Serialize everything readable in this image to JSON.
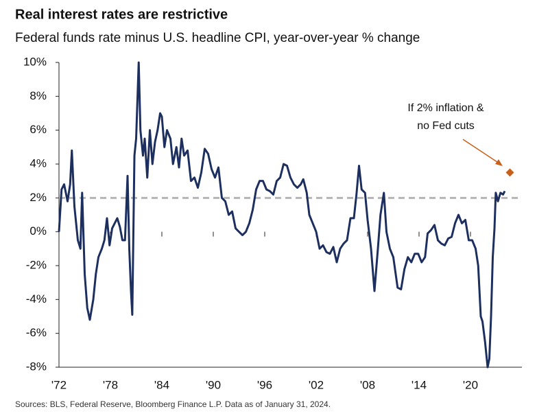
{
  "chart_data": {
    "type": "line",
    "title": "Real interest rates are restrictive",
    "subtitle": "Federal funds rate minus U.S. headline CPI, year-over-year % change",
    "source": "Sources: BLS, Federal Reserve, Bloomberg Finance L.P. Data as of January 31, 2024.",
    "annotation": [
      "If 2% inflation &",
      "no Fed cuts"
    ],
    "color": "#1d2f5f",
    "x": [
      1972.0,
      1972.3,
      1972.6,
      1973.0,
      1973.3,
      1973.5,
      1973.8,
      1974.2,
      1974.5,
      1974.7,
      1975.0,
      1975.3,
      1975.6,
      1976.0,
      1976.3,
      1976.6,
      1977.0,
      1977.3,
      1977.6,
      1977.9,
      1978.2,
      1978.5,
      1978.8,
      1979.1,
      1979.4,
      1979.7,
      1980.0,
      1980.2,
      1980.4,
      1980.55,
      1980.8,
      1981.0,
      1981.3,
      1981.5,
      1981.8,
      1982.0,
      1982.3,
      1982.6,
      1982.9,
      1983.2,
      1983.5,
      1983.8,
      1984.0,
      1984.3,
      1984.6,
      1985.0,
      1985.3,
      1985.7,
      1986.0,
      1986.3,
      1986.6,
      1987.0,
      1987.4,
      1987.8,
      1988.2,
      1988.6,
      1989.0,
      1989.4,
      1989.8,
      1990.2,
      1990.6,
      1991.0,
      1991.4,
      1991.8,
      1992.2,
      1992.6,
      1993.0,
      1993.4,
      1993.8,
      1994.2,
      1994.6,
      1995.0,
      1995.4,
      1995.8,
      1996.2,
      1996.6,
      1997.0,
      1997.4,
      1997.8,
      1998.2,
      1998.6,
      1999.0,
      1999.4,
      1999.8,
      2000.2,
      2000.5,
      2000.9,
      2001.2,
      2001.6,
      2002.0,
      2002.4,
      2002.8,
      2003.2,
      2003.6,
      2004.0,
      2004.4,
      2004.8,
      2005.2,
      2005.6,
      2006.0,
      2006.4,
      2006.7,
      2007.0,
      2007.3,
      2007.7,
      2008.0,
      2008.4,
      2008.8,
      2009.2,
      2009.5,
      2009.9,
      2010.2,
      2010.6,
      2011.0,
      2011.5,
      2011.9,
      2012.3,
      2012.7,
      2013.1,
      2013.5,
      2013.9,
      2014.3,
      2014.7,
      2015.0,
      2015.4,
      2015.8,
      2016.2,
      2016.6,
      2017.0,
      2017.4,
      2017.8,
      2018.2,
      2018.6,
      2019.0,
      2019.4,
      2019.8,
      2020.2,
      2020.6,
      2020.9,
      2021.2,
      2021.4,
      2021.7,
      2022.0,
      2022.2,
      2022.4,
      2022.6,
      2022.8,
      2022.95,
      2023.2,
      2023.5,
      2023.8,
      2024.0
    ],
    "values": [
      0,
      2.5,
      2.8,
      1.8,
      2.8,
      4.8,
      1.5,
      -0.5,
      -1,
      2.3,
      -2.5,
      -4.5,
      -5.2,
      -4,
      -2.5,
      -1.5,
      -1,
      -0.5,
      0.8,
      -0.8,
      0.2,
      0.5,
      0.8,
      0.3,
      -0.5,
      -0.5,
      3.3,
      -1,
      -3.5,
      -4.9,
      4.5,
      5.5,
      10,
      6,
      4.5,
      5.5,
      3.2,
      6,
      4,
      5.3,
      6,
      7,
      6.8,
      5,
      6,
      5.5,
      4,
      5,
      3.8,
      5.5,
      4.5,
      4.8,
      3,
      3.2,
      2.6,
      3.5,
      4.9,
      4.6,
      3.7,
      3.2,
      3.8,
      2,
      1.8,
      1,
      1.2,
      0.2,
      0,
      -0.2,
      0,
      0.5,
      1.3,
      2.5,
      3,
      3,
      2.5,
      2.4,
      2.2,
      3,
      3.2,
      4,
      3.9,
      3.2,
      2.8,
      2.6,
      2.8,
      3.1,
      2.3,
      1,
      0.5,
      0,
      -1,
      -0.8,
      -1.2,
      -1.3,
      -0.9,
      -1.8,
      -1,
      -0.7,
      -0.5,
      0.8,
      0.8,
      2.2,
      3.9,
      2.5,
      2.3,
      0.7,
      -1,
      -3.5,
      -1,
      1,
      2.3,
      0,
      -1,
      -1.5,
      -3.3,
      -3.4,
      -2.2,
      -1.5,
      -1.8,
      -1.3,
      -1.3,
      -1.8,
      -1.5,
      -0.1,
      0.1,
      0.4,
      -0.5,
      -0.7,
      -0.8,
      -0.4,
      -0.3,
      0.5,
      1,
      0.5,
      0.7,
      -0.5,
      -0.5,
      -1,
      -2,
      -5,
      -5.3,
      -6.5,
      -8,
      -7.5,
      -5,
      -1.5,
      0.2,
      2.3,
      1.8,
      2.3,
      2.2,
      2.4
    ],
    "reference_line": 2,
    "projection": {
      "x": 2024.6,
      "value": 3.5,
      "color": "#c8601a"
    },
    "xlim": [
      1972,
      2026
    ],
    "ylim": [
      -8,
      10
    ],
    "xticks": [
      {
        "value": 1972,
        "label": "'72"
      },
      {
        "value": 1978,
        "label": "'78"
      },
      {
        "value": 1984,
        "label": "'84"
      },
      {
        "value": 1990,
        "label": "'90"
      },
      {
        "value": 1996,
        "label": "'96"
      },
      {
        "value": 2002,
        "label": "'02"
      },
      {
        "value": 2008,
        "label": "'08"
      },
      {
        "value": 2014,
        "label": "'14"
      },
      {
        "value": 2020,
        "label": "'20"
      }
    ],
    "yticks": [
      {
        "value": 10,
        "label": "10%"
      },
      {
        "value": 8,
        "label": "8%"
      },
      {
        "value": 6,
        "label": "6%"
      },
      {
        "value": 4,
        "label": "4%"
      },
      {
        "value": 2,
        "label": "2%"
      },
      {
        "value": 0,
        "label": "0%"
      },
      {
        "value": -2,
        "label": "-2%"
      },
      {
        "value": -4,
        "label": "-4%"
      },
      {
        "value": -6,
        "label": "-6%"
      },
      {
        "value": -8,
        "label": "-8%"
      }
    ]
  }
}
